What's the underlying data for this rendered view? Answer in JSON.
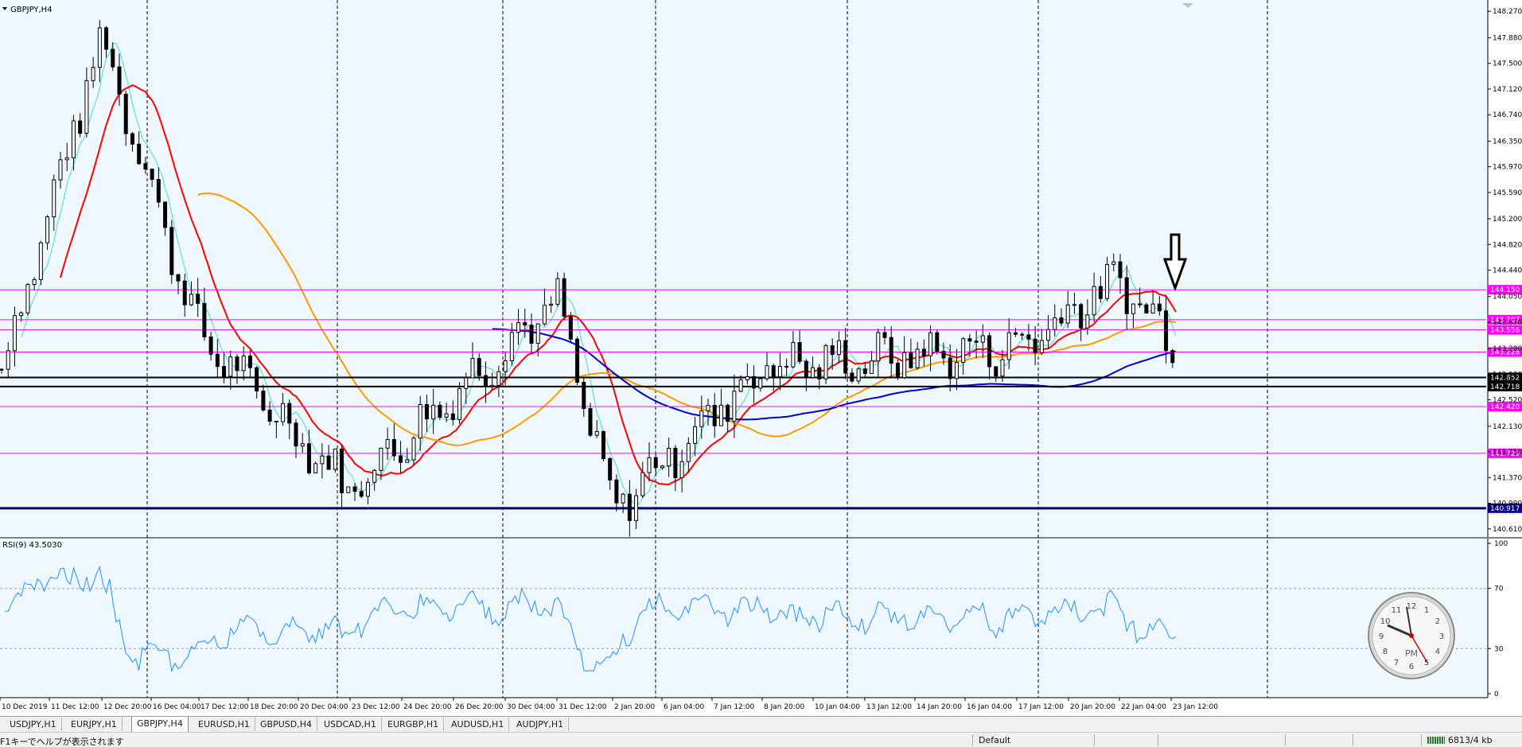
{
  "window": {
    "symbol_label": "GBPJPY,H4",
    "indicator_label": "RSI(9) 43.5030"
  },
  "price_scale": [
    "148.270",
    "147.880",
    "147.500",
    "147.120",
    "146.740",
    "146.350",
    "145.970",
    "145.590",
    "145.200",
    "144.820",
    "144.440",
    "144.050",
    "143.670",
    "143.280",
    "142.900",
    "142.520",
    "142.130",
    "141.750",
    "141.370",
    "140.990",
    "140.610"
  ],
  "level_lines": [
    {
      "price": 144.15,
      "label": "144.150",
      "color": "#ff00ff",
      "style": "magenta"
    },
    {
      "price": 143.707,
      "label": "143.707",
      "color": "#ff00ff",
      "style": "magenta"
    },
    {
      "price": 143.556,
      "label": "143.556",
      "color": "#ff00ff",
      "style": "magenta"
    },
    {
      "price": 143.228,
      "label": "143.228",
      "color": "#ff00ff",
      "style": "magenta"
    },
    {
      "price": 142.852,
      "label": "142.852",
      "color": "#000000",
      "style": "black"
    },
    {
      "price": 142.718,
      "label": "142.718",
      "color": "#000000",
      "style": "black"
    },
    {
      "price": 142.42,
      "label": "142.420",
      "color": "#ff00ff",
      "style": "magenta"
    },
    {
      "price": 141.729,
      "label": "141.729",
      "color": "#ff00ff",
      "style": "magenta"
    },
    {
      "price": 140.917,
      "label": "140.917",
      "color": "#000080",
      "style": "navy"
    }
  ],
  "rsi_scale": [
    "100",
    "70",
    "30",
    "0"
  ],
  "time_labels": [
    "10 Dec 2019",
    "11 Dec 12:00",
    "12 Dec 20:00",
    "16 Dec 04:00",
    "17 Dec 12:00",
    "18 Dec 20:00",
    "20 Dec 04:00",
    "23 Dec 12:00",
    "24 Dec 20:00",
    "26 Dec 20:00",
    "30 Dec 04:00",
    "31 Dec 12:00",
    "2 Jan 20:00",
    "6 Jan 04:00",
    "7 Jan 12:00",
    "8 Jan 20:00",
    "10 Jan 04:00",
    "13 Jan 12:00",
    "14 Jan 20:00",
    "16 Jan 04:00",
    "17 Jan 12:00",
    "20 Jan 20:00",
    "22 Jan 04:00",
    "23 Jan 12:00"
  ],
  "tabs": [
    "USDJPY,H1",
    "EURJPY,H1",
    "GBPJPY,H4",
    "EURUSD,H1",
    "GBPUSD,H4",
    "USDCAD,H1",
    "EURGBP,H1",
    "AUDUSD,H1",
    "AUDJPY,H1"
  ],
  "active_tab": "GBPJPY,H4",
  "status": {
    "help": "F1キーでヘルプが表示されます",
    "profile": "Default",
    "traffic": "6813/4 kb"
  },
  "clock": {
    "label": "PM",
    "numerals": [
      "12",
      "1",
      "2",
      "3",
      "4",
      "5",
      "6",
      "7",
      "8",
      "9",
      "10",
      "11"
    ],
    "time": "5:53"
  },
  "chart_data": {
    "type": "candlestick",
    "symbol": "GBPJPY",
    "timeframe": "H4",
    "ylim": [
      140.55,
      148.32
    ],
    "rsi_period": 9,
    "rsi_last": 43.503,
    "rsi_levels": [
      70,
      30
    ],
    "indicator_colors": {
      "ma_fast": "#40e0c0",
      "ma_mid": "#ff0000",
      "ma_slow": "#ff9900",
      "ma_long": "#0000c0",
      "rsi": "#1e90ff"
    },
    "key_points": [
      {
        "x": "10 Dec 2019",
        "close": 142.9
      },
      {
        "x": "12 Dec 20:00",
        "close": 147.9
      },
      {
        "x": "17 Dec 12:00",
        "close": 143.5
      },
      {
        "x": "23 Dec 12:00",
        "close": 141.2
      },
      {
        "x": "31 Dec 12:00",
        "close": 144.0
      },
      {
        "x": "2 Jan 20:00",
        "close": 140.9
      },
      {
        "x": "8 Jan 20:00",
        "close": 143.0
      },
      {
        "x": "17 Jan 12:00",
        "close": 143.3
      },
      {
        "x": "22 Jan 04:00",
        "close": 144.3
      },
      {
        "x": "23 Jan 12:00",
        "close": 143.4
      }
    ]
  }
}
